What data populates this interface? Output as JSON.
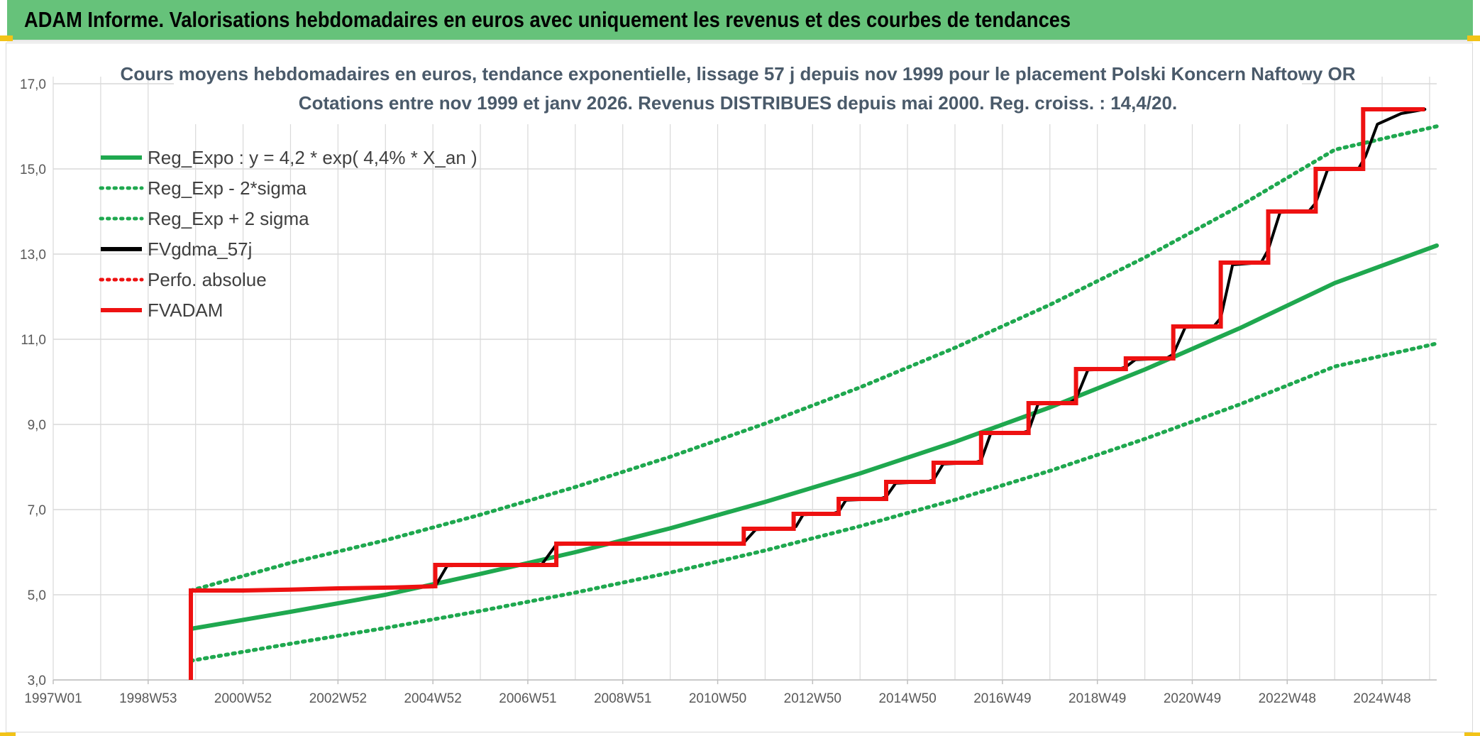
{
  "header": {
    "title": "ADAM Informe. Valorisations hebdomadaires en euros avec uniquement les revenus et des courbes de tendances"
  },
  "colors": {
    "banner": "#66c27a",
    "reg_green": "#1fa84f",
    "fvgdma_black": "#000000",
    "fvadam_red": "#ee1111",
    "perfo_red": "#ee1111",
    "grid": "#d9d9d9",
    "corner_accent": "#f2c318"
  },
  "chart_data": {
    "type": "line",
    "title_lines": [
      "Cours moyens hebdomadaires en euros, tendance exponentielle, lissage 57 j depuis nov 1999 pour le placement Polski Koncern Naftowy OR",
      "Cotations entre nov 1999 et janv 2026. Revenus DISTRIBUES depuis mai 2000. Reg. croiss. : 14,4/20."
    ],
    "x_tick_labels": [
      "1997W01",
      "1998W53",
      "2000W52",
      "2002W52",
      "2004W52",
      "2006W51",
      "2008W51",
      "2010W50",
      "2012W50",
      "2014W50",
      "2016W49",
      "2018W49",
      "2020W49",
      "2022W48",
      "2024W48"
    ],
    "x_unit": "year",
    "xlim": [
      1997.0,
      2026.15
    ],
    "ylim": [
      3.0,
      17.0
    ],
    "y_tick_labels": [
      "3,0",
      "5,0",
      "7,0",
      "9,0",
      "11,0",
      "13,0",
      "15,0",
      "17,0"
    ],
    "grid": true,
    "legend_position": "top-left",
    "series": [
      {
        "name": "Reg_Expo : y = 4,2 * exp( 4,4% *  X_an )",
        "kind": "reg",
        "style": "solid-thick",
        "color": "#1fa84f",
        "points": [
          [
            1999.9,
            4.2
          ],
          [
            2002.0,
            4.6
          ],
          [
            2004.0,
            5.0
          ],
          [
            2006.0,
            5.49
          ],
          [
            2008.0,
            6.0
          ],
          [
            2010.0,
            6.56
          ],
          [
            2012.0,
            7.18
          ],
          [
            2014.0,
            7.85
          ],
          [
            2016.0,
            8.59
          ],
          [
            2018.0,
            9.4
          ],
          [
            2020.0,
            10.29
          ],
          [
            2022.0,
            11.26
          ],
          [
            2024.0,
            12.32
          ],
          [
            2026.15,
            13.2
          ]
        ]
      },
      {
        "name": "Reg_Exp - 2*sigma",
        "kind": "band",
        "style": "dotted",
        "color": "#1fa84f",
        "points": [
          [
            1999.9,
            5.1
          ],
          [
            2002.0,
            5.75
          ],
          [
            2004.0,
            6.28
          ],
          [
            2006.0,
            6.88
          ],
          [
            2008.0,
            7.53
          ],
          [
            2010.0,
            8.24
          ],
          [
            2012.0,
            9.02
          ],
          [
            2014.0,
            9.87
          ],
          [
            2016.0,
            10.8
          ],
          [
            2018.0,
            11.81
          ],
          [
            2020.0,
            12.92
          ],
          [
            2022.0,
            14.13
          ],
          [
            2024.0,
            15.45
          ],
          [
            2026.15,
            16.0
          ]
        ]
      },
      {
        "name": "Reg_Exp + 2 sigma",
        "kind": "band",
        "style": "dotted",
        "color": "#1fa84f",
        "points": [
          [
            1999.9,
            3.45
          ],
          [
            2002.0,
            3.85
          ],
          [
            2004.0,
            4.22
          ],
          [
            2006.0,
            4.62
          ],
          [
            2008.0,
            5.05
          ],
          [
            2010.0,
            5.52
          ],
          [
            2012.0,
            6.04
          ],
          [
            2014.0,
            6.61
          ],
          [
            2016.0,
            7.23
          ],
          [
            2018.0,
            7.91
          ],
          [
            2020.0,
            8.66
          ],
          [
            2022.0,
            9.47
          ],
          [
            2024.0,
            10.36
          ],
          [
            2026.15,
            10.9
          ]
        ]
      },
      {
        "name": "FVgdma_57j",
        "kind": "smooth",
        "style": "solid",
        "color": "#000000",
        "points": [
          [
            1999.9,
            5.1
          ],
          [
            2001.0,
            5.1
          ],
          [
            2002.0,
            5.12
          ],
          [
            2003.0,
            5.15
          ],
          [
            2004.2,
            5.17
          ],
          [
            2005.05,
            5.2
          ],
          [
            2005.3,
            5.68
          ],
          [
            2006.0,
            5.7
          ],
          [
            2007.3,
            5.72
          ],
          [
            2007.6,
            6.18
          ],
          [
            2008.5,
            6.2
          ],
          [
            2010.0,
            6.2
          ],
          [
            2011.0,
            6.2
          ],
          [
            2011.55,
            6.22
          ],
          [
            2011.8,
            6.53
          ],
          [
            2012.5,
            6.55
          ],
          [
            2012.65,
            6.6
          ],
          [
            2012.8,
            6.88
          ],
          [
            2013.4,
            6.9
          ],
          [
            2013.55,
            6.95
          ],
          [
            2013.7,
            7.22
          ],
          [
            2014.4,
            7.25
          ],
          [
            2014.55,
            7.3
          ],
          [
            2014.75,
            7.62
          ],
          [
            2015.4,
            7.65
          ],
          [
            2015.55,
            7.7
          ],
          [
            2015.75,
            8.07
          ],
          [
            2016.4,
            8.1
          ],
          [
            2016.55,
            8.15
          ],
          [
            2016.75,
            8.78
          ],
          [
            2017.4,
            8.8
          ],
          [
            2017.55,
            8.85
          ],
          [
            2017.75,
            9.48
          ],
          [
            2018.4,
            9.5
          ],
          [
            2018.55,
            9.6
          ],
          [
            2018.8,
            10.28
          ],
          [
            2019.45,
            10.3
          ],
          [
            2019.6,
            10.35
          ],
          [
            2019.8,
            10.52
          ],
          [
            2020.45,
            10.55
          ],
          [
            2020.6,
            10.65
          ],
          [
            2020.85,
            11.28
          ],
          [
            2021.45,
            11.3
          ],
          [
            2021.6,
            11.5
          ],
          [
            2021.85,
            12.75
          ],
          [
            2022.45,
            12.8
          ],
          [
            2022.6,
            13.1
          ],
          [
            2022.85,
            13.98
          ],
          [
            2023.45,
            14.0
          ],
          [
            2023.6,
            14.2
          ],
          [
            2023.85,
            14.98
          ],
          [
            2024.5,
            15.0
          ],
          [
            2024.65,
            15.3
          ],
          [
            2024.9,
            16.05
          ],
          [
            2025.4,
            16.3
          ],
          [
            2025.9,
            16.4
          ]
        ]
      },
      {
        "name": "Perfo. absolue",
        "kind": "hidden",
        "style": "dotted",
        "color": "#ee1111",
        "points": []
      },
      {
        "name": "FVADAM",
        "kind": "step",
        "style": "solid-thick",
        "color": "#ee1111",
        "points": [
          [
            1999.9,
            3.0
          ],
          [
            1999.9,
            5.1
          ],
          [
            2001.0,
            5.1
          ],
          [
            2002.0,
            5.12
          ],
          [
            2003.0,
            5.15
          ],
          [
            2004.2,
            5.17
          ],
          [
            2005.05,
            5.2
          ],
          [
            2005.05,
            5.7
          ],
          [
            2007.6,
            5.7
          ],
          [
            2007.6,
            6.2
          ],
          [
            2011.55,
            6.2
          ],
          [
            2011.55,
            6.55
          ],
          [
            2012.6,
            6.55
          ],
          [
            2012.6,
            6.9
          ],
          [
            2013.55,
            6.9
          ],
          [
            2013.55,
            7.25
          ],
          [
            2014.55,
            7.25
          ],
          [
            2014.55,
            7.65
          ],
          [
            2015.55,
            7.65
          ],
          [
            2015.55,
            8.1
          ],
          [
            2016.55,
            8.1
          ],
          [
            2016.55,
            8.8
          ],
          [
            2017.55,
            8.8
          ],
          [
            2017.55,
            9.5
          ],
          [
            2018.55,
            9.5
          ],
          [
            2018.55,
            10.3
          ],
          [
            2019.6,
            10.3
          ],
          [
            2019.6,
            10.55
          ],
          [
            2020.6,
            10.55
          ],
          [
            2020.6,
            11.3
          ],
          [
            2021.6,
            11.3
          ],
          [
            2021.6,
            12.8
          ],
          [
            2022.6,
            12.8
          ],
          [
            2022.6,
            14.0
          ],
          [
            2023.6,
            14.0
          ],
          [
            2023.6,
            15.0
          ],
          [
            2024.6,
            15.0
          ],
          [
            2024.6,
            16.4
          ],
          [
            2025.9,
            16.4
          ]
        ]
      }
    ]
  }
}
